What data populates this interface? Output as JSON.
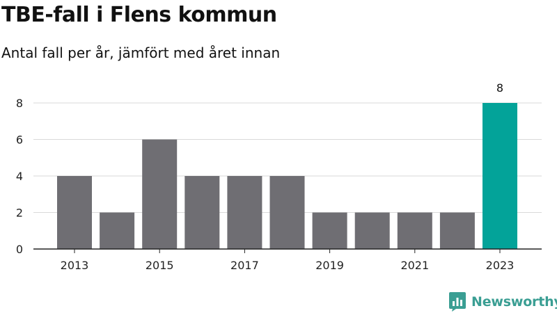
{
  "title": "TBE-fall i Flens kommun",
  "subtitle": "Antal fall per år, jämfört med året innan",
  "colors": {
    "bar": "#6f6e73",
    "highlight": "#03a399",
    "grid": "#d9d9d9",
    "axis": "#222222",
    "brand": "#3a9e93"
  },
  "chart_data": {
    "type": "bar",
    "categories": [
      "2013",
      "2014",
      "2015",
      "2016",
      "2017",
      "2018",
      "2019",
      "2020",
      "2021",
      "2022",
      "2023"
    ],
    "values": [
      4,
      2,
      6,
      4,
      4,
      4,
      2,
      2,
      2,
      2,
      8
    ],
    "x_tick_labels": [
      "2013",
      "2015",
      "2017",
      "2019",
      "2021",
      "2023"
    ],
    "y_ticks": [
      0,
      2,
      4,
      6,
      8
    ],
    "ylim": [
      0,
      8
    ],
    "highlight_index": 10,
    "data_labels": [
      {
        "category": "2023",
        "value": "8"
      }
    ],
    "grid": true
  },
  "footer": {
    "brand_name": "Newsworthy",
    "brand_icon": "bar-chart-logo-icon"
  }
}
